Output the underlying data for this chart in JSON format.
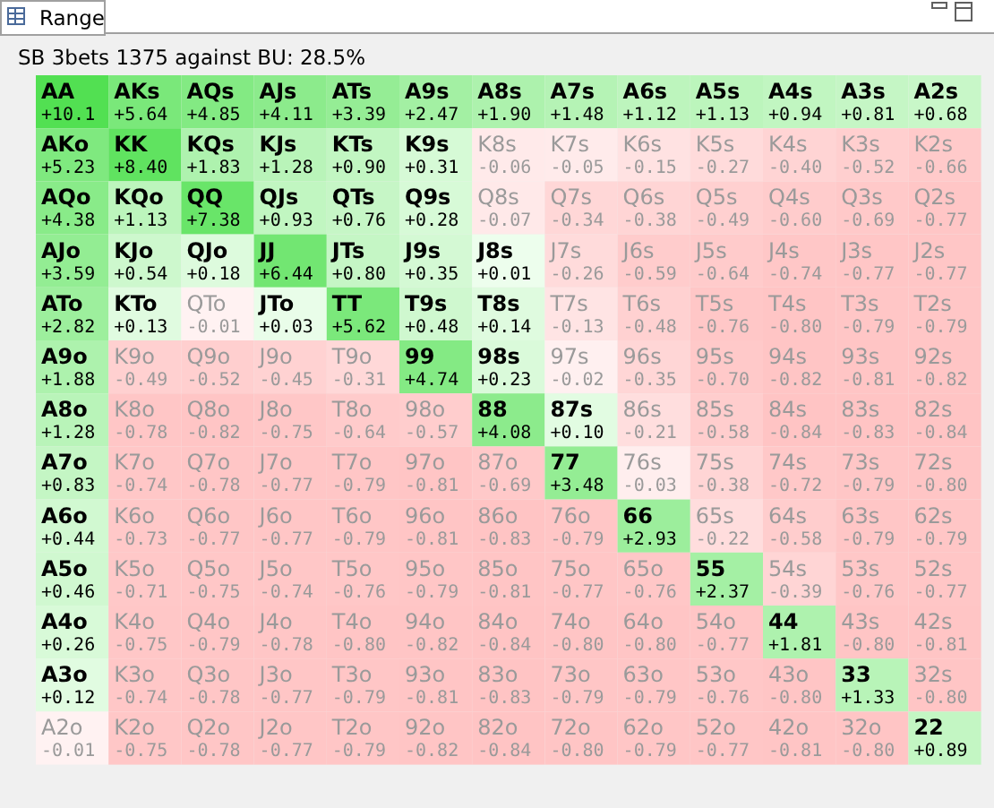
{
  "chart_data": {
    "type": "heatmap",
    "title": "SB 3bets 1375 against BU: 28.5%",
    "annotations": [
      "Range",
      "AA",
      "AKs",
      "AQs",
      "AJs",
      "ATs",
      "A9s",
      "A8s",
      "A7s",
      "A6s",
      "A5s",
      "A4s",
      "A3s",
      "A2s",
      "AKo",
      "KK",
      "KQs",
      "KJs",
      "KTs",
      "K9s",
      "K8s",
      "K7s",
      "K6s",
      "K5s",
      "K4s",
      "K3s",
      "K2s",
      "AQo",
      "KQo",
      "QQ",
      "QJs",
      "QTs",
      "Q9s",
      "Q8s",
      "Q7s",
      "Q6s",
      "Q5s",
      "Q4s",
      "Q3s",
      "Q2s",
      "AJo",
      "KJo",
      "QJo",
      "JJ",
      "JTs",
      "J9s",
      "J8s",
      "J7s",
      "J6s",
      "J5s",
      "J4s",
      "J3s",
      "J2s",
      "ATo",
      "KTo",
      "QTo",
      "JTo",
      "TT",
      "T9s",
      "T8s",
      "T7s",
      "T6s",
      "T5s",
      "T4s",
      "T3s",
      "T2s",
      "A9o",
      "K9o",
      "Q9o",
      "J9o",
      "T9o",
      "99",
      "98s",
      "97s",
      "96s",
      "95s",
      "94s",
      "93s",
      "92s",
      "A8o",
      "K8o",
      "Q8o",
      "J8o",
      "T8o",
      "98o",
      "88",
      "87s",
      "86s",
      "85s",
      "84s",
      "83s",
      "82s",
      "A7o",
      "K7o",
      "Q7o",
      "J7o",
      "T7o",
      "97o",
      "87o",
      "77",
      "76s",
      "75s",
      "74s",
      "73s",
      "72s",
      "A6o",
      "K6o",
      "Q6o",
      "J6o",
      "T6o",
      "96o",
      "86o",
      "76o",
      "66",
      "65s",
      "64s",
      "63s",
      "62s",
      "A5o",
      "K5o",
      "Q5o",
      "J5o",
      "T5o",
      "95o",
      "85o",
      "75o",
      "65o",
      "55",
      "54s",
      "53s",
      "52s",
      "A4o",
      "K4o",
      "Q4o",
      "J4o",
      "T4o",
      "94o",
      "84o",
      "74o",
      "64o",
      "54o",
      "44",
      "43s",
      "42s",
      "A3o",
      "K3o",
      "Q3o",
      "J3o",
      "T3o",
      "93o",
      "83o",
      "73o",
      "63o",
      "53o",
      "43o",
      "33",
      "32s",
      "A2o",
      "K2o",
      "Q2o",
      "J2o",
      "T2o",
      "92o",
      "82o",
      "72o",
      "62o",
      "52o",
      "42o",
      "32o",
      "22"
    ],
    "categories": [
      null,
      null,
      null,
      null,
      null,
      null,
      null,
      null,
      null,
      null,
      null,
      null,
      null
    ],
    "y_categories": [
      null,
      null,
      null,
      null,
      null,
      null,
      null,
      null,
      null,
      null,
      null,
      null,
      null
    ],
    "cells": [
      [
        10.1,
        5.64,
        4.85,
        4.11,
        3.39,
        2.47,
        1.9,
        1.48,
        1.12,
        1.13,
        0.94,
        0.81,
        0.68
      ],
      [
        5.23,
        8.4,
        1.83,
        1.28,
        0.9,
        0.31,
        -0.06,
        -0.05,
        -0.15,
        -0.27,
        -0.4,
        -0.52,
        -0.66
      ],
      [
        4.38,
        1.13,
        7.38,
        0.93,
        0.76,
        0.28,
        -0.07,
        -0.34,
        -0.38,
        -0.49,
        -0.6,
        -0.69,
        -0.77
      ],
      [
        3.59,
        0.54,
        0.18,
        6.44,
        0.8,
        0.35,
        0.01,
        -0.26,
        -0.59,
        -0.64,
        -0.74,
        -0.77,
        -0.77
      ],
      [
        2.82,
        0.13,
        -0.01,
        0.03,
        5.62,
        0.48,
        0.14,
        -0.13,
        -0.48,
        -0.76,
        -0.8,
        -0.79,
        -0.79
      ],
      [
        1.88,
        -0.49,
        -0.52,
        -0.45,
        -0.31,
        4.74,
        0.23,
        -0.02,
        -0.35,
        -0.7,
        -0.82,
        -0.81,
        -0.82
      ],
      [
        1.28,
        -0.78,
        -0.82,
        -0.75,
        -0.64,
        -0.57,
        4.08,
        0.1,
        -0.21,
        -0.58,
        -0.84,
        -0.83,
        -0.84
      ],
      [
        0.83,
        -0.74,
        -0.78,
        -0.77,
        -0.79,
        -0.81,
        -0.69,
        3.48,
        -0.03,
        -0.38,
        -0.72,
        -0.79,
        -0.8
      ],
      [
        0.44,
        -0.73,
        -0.77,
        -0.77,
        -0.79,
        -0.81,
        -0.83,
        -0.79,
        2.93,
        -0.22,
        -0.58,
        -0.79,
        -0.79
      ],
      [
        0.46,
        -0.71,
        -0.75,
        -0.74,
        -0.76,
        -0.79,
        -0.81,
        -0.77,
        -0.76,
        2.37,
        -0.39,
        -0.76,
        -0.77
      ],
      [
        0.26,
        -0.75,
        -0.79,
        -0.78,
        -0.8,
        -0.82,
        -0.84,
        -0.8,
        -0.8,
        -0.77,
        1.81,
        -0.8,
        -0.81
      ],
      [
        0.12,
        -0.74,
        -0.78,
        -0.77,
        -0.79,
        -0.81,
        -0.83,
        -0.79,
        -0.79,
        -0.76,
        -0.8,
        1.33,
        -0.8
      ],
      [
        -0.01,
        -0.75,
        -0.78,
        -0.77,
        -0.79,
        -0.82,
        -0.84,
        -0.8,
        -0.79,
        -0.77,
        -0.81,
        -0.8,
        0.89
      ]
    ],
    "cell_labels": [
      [
        "+10.1",
        "+5.64",
        "+4.85",
        "+4.11",
        "+3.39",
        "+2.47",
        "+1.90",
        "+1.48",
        "+1.12",
        "+1.13",
        "+0.94",
        "+0.81",
        "+0.68"
      ],
      [
        "+5.23",
        "+8.40",
        "+1.83",
        "+1.28",
        "+0.90",
        "+0.31",
        "-0.06",
        "-0.05",
        "-0.15",
        "-0.27",
        "-0.40",
        "-0.52",
        "-0.66"
      ],
      [
        "+4.38",
        "+1.13",
        "+7.38",
        "+0.93",
        "+0.76",
        "+0.28",
        "-0.07",
        "-0.34",
        "-0.38",
        "-0.49",
        "-0.60",
        "-0.69",
        "-0.77"
      ],
      [
        "+3.59",
        "+0.54",
        "+0.18",
        "+6.44",
        "+0.80",
        "+0.35",
        "+0.01",
        "-0.26",
        "-0.59",
        "-0.64",
        "-0.74",
        "-0.77",
        "-0.77"
      ],
      [
        "+2.82",
        "+0.13",
        "-0.01",
        "+0.03",
        "+5.62",
        "+0.48",
        "+0.14",
        "-0.13",
        "-0.48",
        "-0.76",
        "-0.80",
        "-0.79",
        "-0.79"
      ],
      [
        "+1.88",
        "-0.49",
        "-0.52",
        "-0.45",
        "-0.31",
        "+4.74",
        "+0.23",
        "-0.02",
        "-0.35",
        "-0.70",
        "-0.82",
        "-0.81",
        "-0.82"
      ],
      [
        "+1.28",
        "-0.78",
        "-0.82",
        "-0.75",
        "-0.64",
        "-0.57",
        "+4.08",
        "+0.10",
        "-0.21",
        "-0.58",
        "-0.84",
        "-0.83",
        "-0.84"
      ],
      [
        "+0.83",
        "-0.74",
        "-0.78",
        "-0.77",
        "-0.79",
        "-0.81",
        "-0.69",
        "+3.48",
        "-0.03",
        "-0.38",
        "-0.72",
        "-0.79",
        "-0.80"
      ],
      [
        "+0.44",
        "-0.73",
        "-0.77",
        "-0.77",
        "-0.79",
        "-0.81",
        "-0.83",
        "-0.79",
        "+2.93",
        "-0.22",
        "-0.58",
        "-0.79",
        "-0.79"
      ],
      [
        "+0.46",
        "-0.71",
        "-0.75",
        "-0.74",
        "-0.76",
        "-0.79",
        "-0.81",
        "-0.77",
        "-0.76",
        "+2.37",
        "-0.39",
        "-0.76",
        "-0.77"
      ],
      [
        "+0.26",
        "-0.75",
        "-0.79",
        "-0.78",
        "-0.80",
        "-0.82",
        "-0.84",
        "-0.80",
        "-0.80",
        "-0.77",
        "+1.81",
        "-0.80",
        "-0.81"
      ],
      [
        "+0.12",
        "-0.74",
        "-0.78",
        "-0.77",
        "-0.79",
        "-0.81",
        "-0.83",
        "-0.79",
        "-0.79",
        "-0.76",
        "-0.80",
        "+1.33",
        "-0.80"
      ],
      [
        "-0.01",
        "-0.75",
        "-0.78",
        "-0.77",
        "-0.79",
        "-0.82",
        "-0.84",
        "-0.80",
        "-0.79",
        "-0.77",
        "-0.81",
        "-0.80",
        "+0.89"
      ]
    ]
  }
}
